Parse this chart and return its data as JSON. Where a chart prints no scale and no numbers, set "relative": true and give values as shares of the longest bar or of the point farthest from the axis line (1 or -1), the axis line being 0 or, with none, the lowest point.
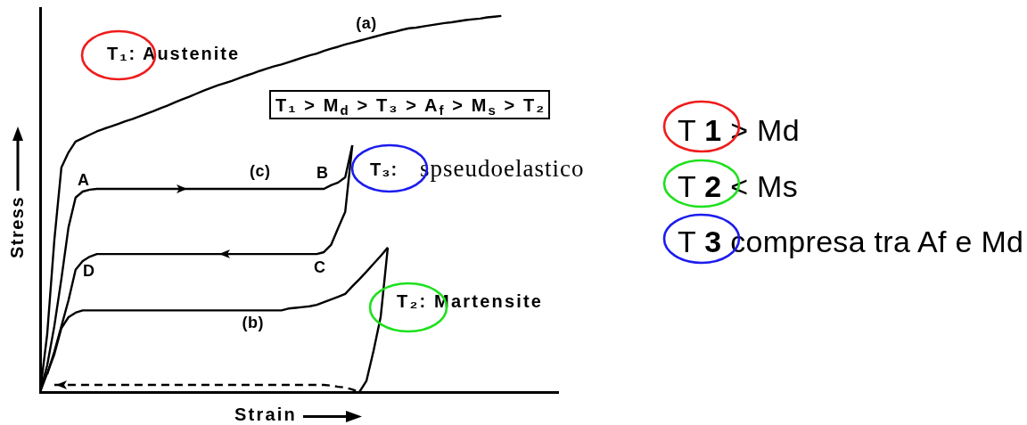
{
  "chart_data": {
    "type": "line",
    "relative": true,
    "marker": "none",
    "xlabel": "Strain",
    "ylabel": "Stress",
    "categories": [
      null,
      null,
      null,
      null,
      null,
      null,
      null,
      null,
      null,
      null,
      null,
      null,
      null,
      null,
      null,
      null,
      null,
      null,
      null,
      null,
      null,
      null,
      null,
      null,
      null,
      null,
      null,
      null,
      null,
      null,
      null,
      null,
      null,
      null,
      null,
      null,
      null,
      null,
      null,
      null,
      null,
      null,
      null,
      null,
      null,
      null,
      null,
      null,
      null,
      null,
      null,
      null,
      null,
      null,
      null,
      null,
      null,
      null,
      null,
      null,
      null,
      null,
      null,
      null,
      null,
      null,
      null,
      null,
      null,
      null,
      null,
      null,
      null,
      null
    ],
    "series": [
      {
        "name": "(a)",
        "color": "#000000",
        "values": [
          0,
          0.154,
          0.403,
          0.597,
          0.637,
          0.666,
          0.675,
          0.684,
          0.693,
          0.7,
          0.706,
          0.713,
          0.72,
          0.726,
          0.733,
          0.74,
          0.747,
          0.755,
          0.762,
          0.77,
          0.778,
          0.785,
          0.793,
          0.801,
          0.808,
          0.815,
          0.821,
          0.827,
          0.834,
          0.841,
          0.847,
          0.854,
          0.86,
          0.866,
          0.871,
          0.877,
          0.883,
          0.889,
          0.895,
          0.9,
          0.907,
          0.913,
          0.918,
          0.924,
          0.929,
          0.934,
          0.939,
          0.944,
          0.949,
          0.954,
          0.958,
          0.963,
          0.967,
          0.969,
          0.972,
          0.975,
          0.978,
          0.981,
          0.983,
          0.986,
          0.989,
          0.991,
          0.993,
          0.996,
          0.998,
          1,
          null,
          null,
          null,
          null,
          null,
          null,
          null,
          null
        ]
      },
      {
        "name": "(c)",
        "color": "#000000",
        "values": [
          0,
          0.071,
          0.175,
          0.301,
          0.438,
          0.517,
          0.533,
          0.538,
          0.54,
          0.54,
          0.54,
          0.54,
          0.54,
          0.54,
          0.54,
          0.54,
          0.54,
          0.54,
          0.54,
          0.54,
          0.54,
          0.54,
          0.54,
          0.54,
          0.54,
          0.54,
          0.54,
          0.54,
          0.54,
          0.54,
          0.54,
          0.54,
          0.54,
          0.54,
          0.54,
          0.54,
          0.54,
          0.54,
          0.54,
          0.54,
          0.54,
          0.55,
          0.557,
          0.571,
          0.656,
          null,
          null,
          null,
          null,
          null,
          null,
          null,
          null,
          null,
          null,
          null,
          null,
          null,
          null,
          null,
          null,
          null,
          null,
          null,
          null,
          null,
          null,
          null,
          null,
          null,
          null,
          null,
          null,
          null
        ]
      },
      {
        "color": "#000000",
        "values": [
          null,
          0.047,
          0.107,
          0.175,
          0.244,
          0.325,
          0.348,
          0.36,
          0.367,
          0.367,
          0.367,
          0.367,
          0.367,
          0.367,
          0.367,
          0.367,
          0.367,
          0.367,
          0.367,
          0.367,
          0.367,
          0.367,
          0.367,
          0.367,
          0.367,
          0.367,
          0.367,
          0.367,
          0.367,
          0.367,
          0.367,
          0.367,
          0.367,
          0.367,
          0.367,
          0.367,
          0.367,
          0.367,
          0.367,
          0.367,
          0.372,
          0.391,
          0.436,
          0.479,
          0.656,
          null,
          null,
          null,
          null,
          null,
          null,
          null,
          null,
          null,
          null,
          null,
          null,
          null,
          null,
          null,
          null,
          null,
          null,
          null,
          null,
          null,
          null,
          null,
          null,
          null,
          null,
          null,
          null,
          null
        ]
      },
      {
        "name": "(b)",
        "color": "#000000",
        "values": [
          0,
          0.05,
          0.1,
          0.17,
          0.199,
          0.211,
          0.217,
          0.217,
          0.217,
          0.217,
          0.217,
          0.217,
          0.217,
          0.217,
          0.217,
          0.217,
          0.217,
          0.217,
          0.217,
          0.217,
          0.217,
          0.217,
          0.217,
          0.217,
          0.217,
          0.217,
          0.217,
          0.217,
          0.217,
          0.217,
          0.217,
          0.217,
          0.217,
          0.217,
          0.217,
          0.222,
          0.224,
          0.226,
          0.228,
          0.232,
          0.239,
          0.246,
          0.253,
          0.261,
          0.281,
          0.3,
          0.32,
          0.341,
          0.362,
          0.384,
          null,
          null,
          null,
          null,
          null,
          null,
          null,
          null,
          null,
          null,
          null,
          null,
          null,
          null,
          null,
          null,
          null,
          null,
          null,
          null,
          null,
          null,
          null,
          null
        ]
      },
      {
        "color": "#000000",
        "values": [
          null,
          null,
          null,
          null,
          null,
          null,
          null,
          null,
          null,
          null,
          null,
          null,
          null,
          null,
          null,
          null,
          null,
          null,
          null,
          null,
          null,
          null,
          null,
          null,
          null,
          null,
          null,
          null,
          null,
          null,
          null,
          null,
          null,
          null,
          null,
          null,
          null,
          null,
          null,
          null,
          null,
          null,
          null,
          null,
          null,
          0,
          0.03,
          0.11,
          0.2,
          0.384,
          null,
          null,
          null,
          null,
          null,
          null,
          null,
          null,
          null,
          null,
          null,
          null,
          null,
          null,
          null,
          null,
          null,
          null,
          null,
          null,
          null,
          null,
          null,
          null
        ]
      },
      {
        "color": "#000000",
        "line_style": "dashed",
        "values": [
          null,
          null,
          0.019,
          0.019,
          0.019,
          0.019,
          0.019,
          0.019,
          0.019,
          0.019,
          0.019,
          0.019,
          0.019,
          0.019,
          0.019,
          0.019,
          0.019,
          0.019,
          0.019,
          0.019,
          0.019,
          0.019,
          0.019,
          0.019,
          0.019,
          0.019,
          0.019,
          0.019,
          0.019,
          0.019,
          0.019,
          0.019,
          0.019,
          0.019,
          0.019,
          0.019,
          0.019,
          0.019,
          0.019,
          0.019,
          0.019,
          0.017,
          0.014,
          0.012,
          0.007,
          0,
          null,
          null,
          null,
          null,
          null,
          null,
          null,
          null,
          null,
          null,
          null,
          null,
          null,
          null,
          null,
          null,
          null,
          null,
          null,
          null,
          null,
          null,
          null,
          null,
          null,
          null,
          null,
          null
        ]
      }
    ],
    "annotations": [
      "T₁: Austenite",
      "T₁ > M$_{d}$ > T₃ > A$_{f}$ > M$_{s}$ > T₂",
      "A",
      "B",
      "T₃:",
      "spseudoelastico",
      "C",
      "D",
      "T₂: Martensite",
      "T 1 > Md",
      "T 2 < Ms",
      "T 3 compresa tra Af e Md"
    ]
  }
}
